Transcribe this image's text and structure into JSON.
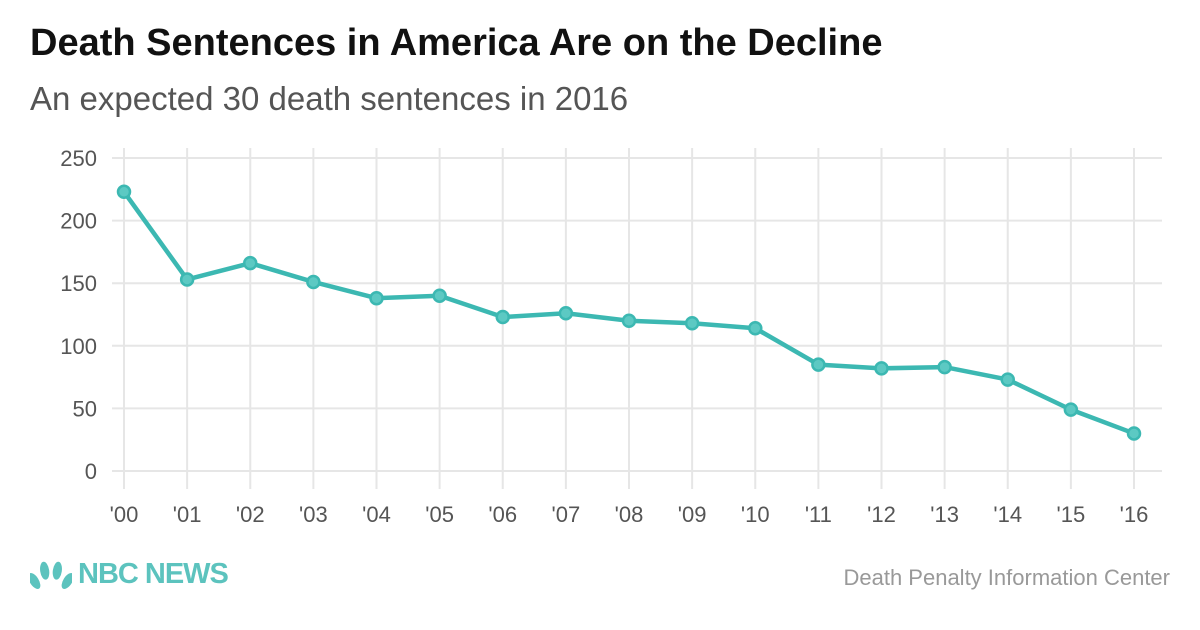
{
  "header": {
    "title": "Death Sentences in America Are on the Decline",
    "subtitle": "An expected 30 death sentences in 2016"
  },
  "footer": {
    "logo_text": "NBC NEWS",
    "logo_icon": "peacock-icon",
    "source": "Death Penalty Information Center"
  },
  "colors": {
    "line": "#3cb8b2",
    "grid": "#e6e6e6",
    "tick_text": "#555555",
    "logo": "#5cc3be"
  },
  "chart_data": {
    "type": "line",
    "title": "Death Sentences in America Are on the Decline",
    "subtitle": "An expected 30 death sentences in 2016",
    "categories": [
      "'00",
      "'01",
      "'02",
      "'03",
      "'04",
      "'05",
      "'06",
      "'07",
      "'08",
      "'09",
      "'10",
      "'11",
      "'12",
      "'13",
      "'14",
      "'15",
      "'16"
    ],
    "series": [
      {
        "values": [
          223,
          153,
          166,
          151,
          138,
          140,
          123,
          126,
          120,
          118,
          114,
          85,
          82,
          83,
          73,
          49,
          30
        ]
      }
    ],
    "ylim": [
      0,
      250
    ],
    "yticks": [
      0,
      50,
      100,
      150,
      200,
      250
    ],
    "ytick_labels": [
      "0",
      "50",
      "100",
      "150",
      "200",
      "250"
    ],
    "grid": true,
    "markers": true
  }
}
